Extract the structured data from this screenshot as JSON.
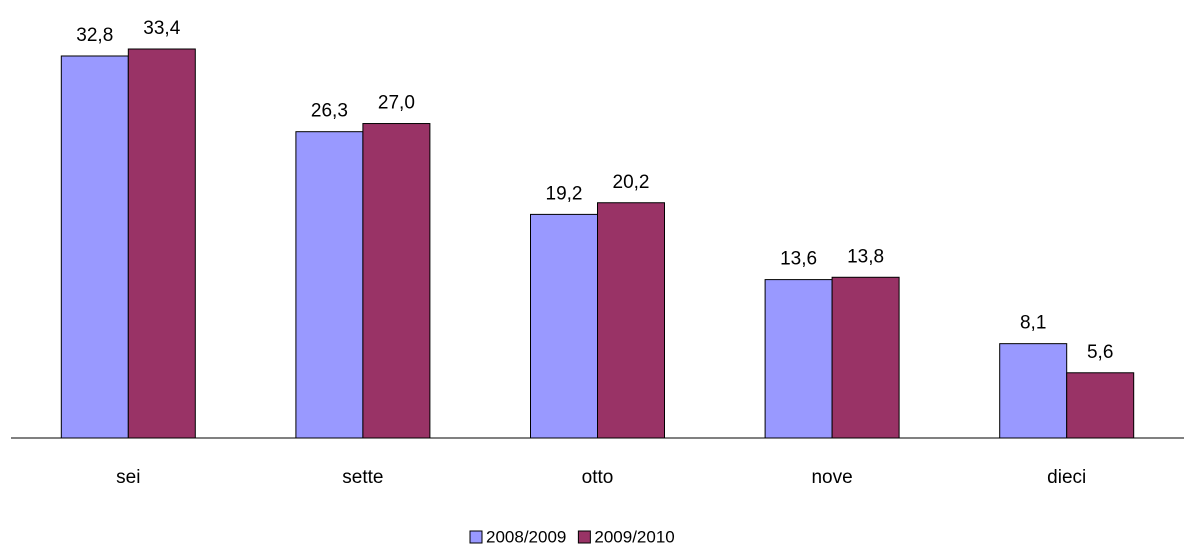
{
  "chart_data": {
    "type": "bar",
    "categories": [
      "sei",
      "sette",
      "otto",
      "nove",
      "dieci"
    ],
    "series": [
      {
        "name": "2008/2009",
        "color": "#9999ff",
        "values": [
          32.8,
          26.3,
          19.2,
          13.6,
          8.1
        ],
        "value_labels": [
          "32,8",
          "26,3",
          "19,2",
          "13,6",
          "8,1"
        ]
      },
      {
        "name": "2009/2010",
        "color": "#993366",
        "values": [
          33.4,
          27.0,
          20.2,
          13.8,
          5.6
        ],
        "value_labels": [
          "33,4",
          "27,0",
          "20,2",
          "13,8",
          "5,6"
        ]
      }
    ],
    "legend": "bottom"
  }
}
